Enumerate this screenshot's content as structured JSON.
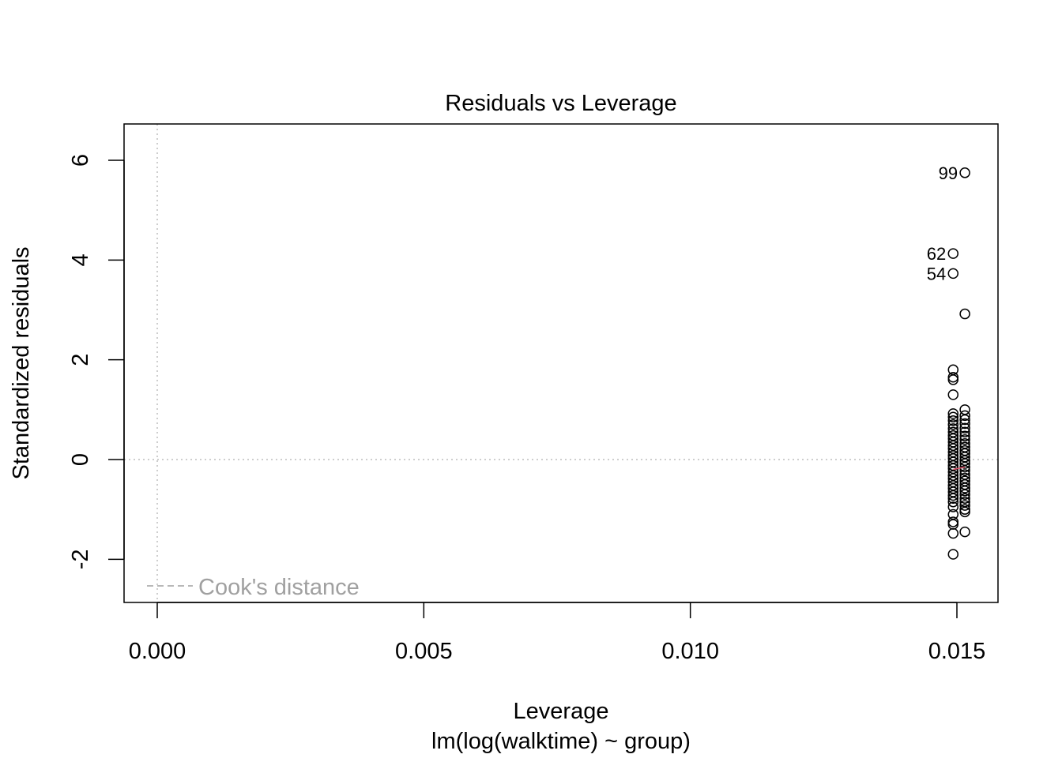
{
  "chart_data": {
    "type": "scatter",
    "title": "Residuals vs Leverage",
    "xlabel": "Leverage",
    "subtitle": "lm(log(walktime) ~ group)",
    "ylabel": "Standardized residuals",
    "xlim": [
      -0.0003,
      0.0158
    ],
    "ylim": [
      -2.85,
      6.7
    ],
    "x_ticks": [
      0.0,
      0.005,
      0.01,
      0.015
    ],
    "x_tick_labels": [
      "0.000",
      "0.005",
      "0.010",
      "0.015"
    ],
    "y_ticks": [
      -2,
      0,
      2,
      4,
      6
    ],
    "y_tick_labels": [
      "-2",
      "0",
      "2",
      "4",
      "6"
    ],
    "reference_lines": {
      "h": 0,
      "v": 0,
      "style": "dotted",
      "color": "#bebebe"
    },
    "legend": {
      "label": "Cook's distance",
      "position": "bottom-left",
      "line_style": "dashed",
      "color": "#a0a0a0"
    },
    "labeled_points": [
      {
        "label": "99",
        "x": 0.01515,
        "y": 5.75
      },
      {
        "label": "62",
        "x": 0.01493,
        "y": 4.13
      },
      {
        "label": "54",
        "x": 0.01493,
        "y": 3.73
      }
    ],
    "series": [
      {
        "x": 0.01493,
        "y": [
          1.8,
          1.65,
          1.6,
          1.3,
          0.92,
          0.85,
          0.78,
          0.7,
          0.62,
          0.55,
          0.48,
          0.42,
          0.35,
          0.28,
          0.22,
          0.15,
          0.08,
          0.02,
          -0.05,
          -0.12,
          -0.18,
          -0.25,
          -0.32,
          -0.38,
          -0.45,
          -0.52,
          -0.58,
          -0.65,
          -0.72,
          -0.78,
          -0.85,
          -0.95,
          -1.1,
          -1.25,
          -1.3,
          -1.48,
          -1.9
        ]
      },
      {
        "x": 0.01515,
        "y": 2.92,
        "values": [
          2.92,
          1.0,
          0.88,
          0.8,
          0.72,
          0.63,
          0.55,
          0.47,
          0.4,
          0.32,
          0.25,
          0.18,
          0.12,
          0.05,
          -0.02,
          -0.08,
          -0.15,
          -0.22,
          -0.3,
          -0.37,
          -0.43,
          -0.5,
          -0.57,
          -0.63,
          -0.7,
          -0.78,
          -0.85,
          -0.92,
          -1.0,
          -1.05,
          -1.45
        ]
      }
    ],
    "smoother": {
      "color": "#df536b",
      "x": [
        0.01493,
        0.01515
      ],
      "y": [
        -0.2,
        -0.15
      ]
    }
  }
}
